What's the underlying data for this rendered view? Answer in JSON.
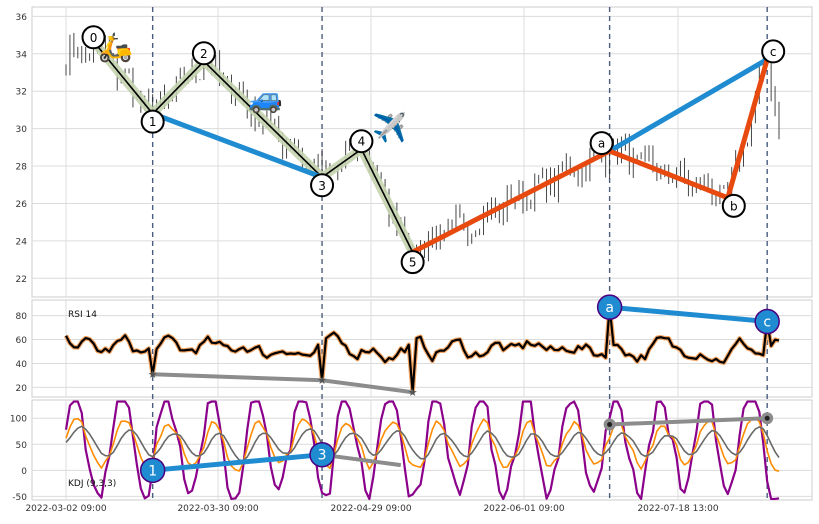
{
  "chart_data": {
    "type": "line",
    "subtype": "candlestick-with-elliott-wave-annotations",
    "x_tick_labels": [
      "2022-03-02 09:00",
      "2022-03-30 09:00",
      "2022-04-29 09:00",
      "2022-06-01 09:00",
      "2022-07-18 13:00"
    ],
    "price_panel": {
      "ylim": [
        21,
        36.5
      ],
      "yticks": [
        22,
        24,
        26,
        28,
        30,
        32,
        34,
        36
      ],
      "candle_color": "#333333",
      "wave_points": [
        {
          "label": "0",
          "index": 8,
          "value": 34.4
        },
        {
          "label": "1",
          "index": 22,
          "value": 30.8
        },
        {
          "label": "2",
          "index": 35,
          "value": 33.6
        },
        {
          "label": "3",
          "index": 65,
          "value": 27.4
        },
        {
          "label": "4",
          "index": 75,
          "value": 28.9
        },
        {
          "label": "5",
          "index": 88,
          "value": 23.4
        },
        {
          "label": "a",
          "index": 138,
          "value": 28.8
        },
        {
          "label": "b",
          "index": 168,
          "value": 26.3
        },
        {
          "label": "c",
          "index": 178,
          "value": 33.7
        }
      ],
      "impulse_color": "#000000",
      "impulse_band_color": "#c5d4b0",
      "correction_color": "#e8490f",
      "trend_color": "#1f8bd0",
      "emojis": [
        {
          "glyph": "🛵",
          "near": "0"
        },
        {
          "glyph": "🚙",
          "near": "2"
        },
        {
          "glyph": "✈️",
          "near": "4"
        }
      ]
    },
    "rsi_panel": {
      "label": "RSI 14",
      "ylim": [
        12,
        93
      ],
      "yticks": [
        20,
        40,
        60,
        80
      ],
      "line_color": "#000000",
      "line_halo": "#f4a460",
      "divergence_points": [
        {
          "label": "a",
          "index": 138,
          "value": 87
        },
        {
          "label": "c",
          "index": 178,
          "value": 75
        }
      ],
      "gray_points": [
        {
          "index": 22,
          "value": 31
        },
        {
          "index": 65,
          "value": 26
        },
        {
          "index": 88,
          "value": 16
        }
      ]
    },
    "kdj_panel": {
      "label": "KDJ (9,3,3)",
      "ylim": [
        -57,
        135
      ],
      "yticks": [
        -50,
        0,
        50,
        100
      ],
      "k_color": "#8b008b",
      "d_color": "#ff8c00",
      "j_color": "#696969",
      "divergence_points": [
        {
          "label": "1",
          "index": 22,
          "value": 0
        },
        {
          "label": "3",
          "index": 65,
          "value": 30
        }
      ],
      "gray_points_low": [
        {
          "index": 65,
          "value": 30
        },
        {
          "index": 85,
          "value": 10
        }
      ],
      "gray_points_high": [
        {
          "index": 138,
          "value": 88
        },
        {
          "index": 178,
          "value": 100
        }
      ]
    },
    "vertical_markers_index": [
      22,
      65,
      138,
      178
    ],
    "n_candles": 182
  }
}
